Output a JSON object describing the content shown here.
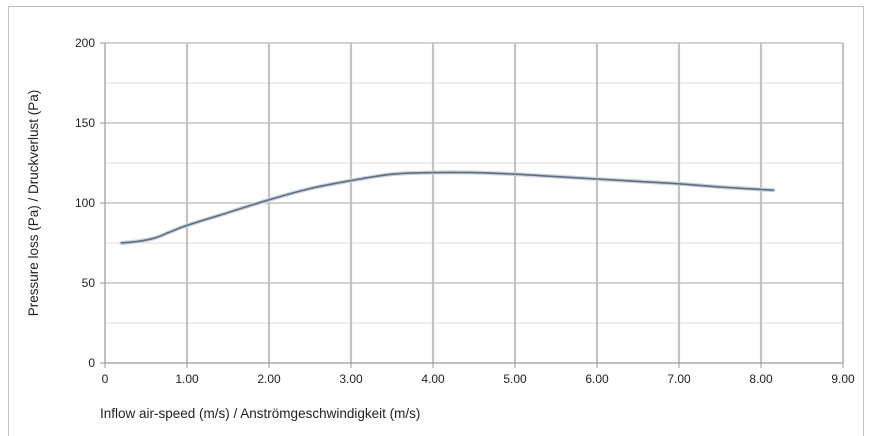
{
  "chart_data": {
    "type": "line",
    "xlabel": "Inflow air-speed (m/s) / Anströmgeschwindigkeit (m/s)",
    "ylabel": "Pressure loss (Pa) / Druckverlust (Pa)",
    "xlim": [
      0,
      9
    ],
    "ylim": [
      0,
      200
    ],
    "x_ticks": [
      "0",
      "1.00",
      "2.00",
      "3.00",
      "4.00",
      "5.00",
      "6.00",
      "7.00",
      "8.00",
      "9.00"
    ],
    "y_ticks": [
      "0",
      "50",
      "100",
      "150",
      "200"
    ],
    "grid": true,
    "series": [
      {
        "color": "#5f6f82",
        "x": [
          0.2,
          0.4,
          0.6,
          0.8,
          1.0,
          1.5,
          2.0,
          2.5,
          3.0,
          3.5,
          4.0,
          4.5,
          5.0,
          5.5,
          6.0,
          6.5,
          7.0,
          7.5,
          8.15
        ],
        "y": [
          75,
          76,
          78,
          82,
          86,
          94,
          102,
          109,
          114,
          118,
          119,
          119,
          118,
          116.5,
          115,
          113.5,
          112,
          110,
          108
        ]
      }
    ]
  }
}
